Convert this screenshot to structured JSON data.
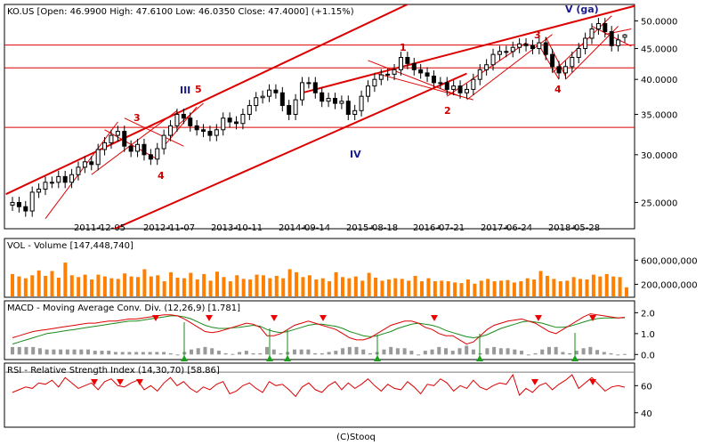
{
  "header": {
    "ticker_line": "KO.US [Open: 46.9900  High: 47.6100  Low: 46.0350  Close: 47.4000] (+1.15%)"
  },
  "footer": {
    "text": "(C)Stooq"
  },
  "colors": {
    "up_candle": "#ffffff",
    "down_candle": "#000000",
    "trendline": "#dd0000",
    "volume_bar": "#ff8000",
    "macd_line": "#dd0000",
    "signal_line": "#1a8a1a",
    "histogram": "#999999",
    "rsi_line": "#dd0000",
    "wave_red": "#cc0000",
    "wave_blue": "#1a1a8c"
  },
  "chart_data": [
    {
      "type": "candlestick",
      "pane": "price",
      "title": "KO.US [Open: 46.9900  High: 47.6100  Low: 46.0350  Close: 47.4000] (+1.15%)",
      "x_tick_labels": [
        "2011-12-05",
        "2012-11-07",
        "2013-10-11",
        "2014-09-14",
        "2015-08-18",
        "2016-07-21",
        "2017-06-24",
        "2018-05-28"
      ],
      "x_range": [
        "2010-11",
        "2019-07"
      ],
      "y_axis_position": "right",
      "y_scale": "log",
      "y_ticks": [
        25,
        30,
        35,
        40,
        45,
        50
      ],
      "y_tick_labels": [
        "25.0000",
        "30.0000",
        "35.0000",
        "40.0000",
        "45.0000",
        "50.0000"
      ],
      "ylim": [
        23,
        52
      ],
      "horizontal_lines": [
        33.3,
        41.8,
        45.6
      ],
      "last_candle": {
        "open": 46.99,
        "high": 47.61,
        "low": 46.035,
        "close": 47.4
      },
      "closes_approx": [
        25.0,
        24.6,
        24.2,
        26.0,
        26.3,
        27.0,
        27.0,
        27.6,
        27.0,
        27.8,
        28.6,
        29.2,
        28.9,
        30.6,
        31.4,
        32.3,
        32.8,
        31.0,
        30.4,
        31.2,
        30.0,
        29.5,
        30.7,
        32.3,
        33.5,
        35.0,
        34.5,
        33.5,
        33.0,
        32.8,
        32.3,
        33.0,
        34.5,
        34.0,
        33.8,
        35.0,
        36.2,
        37.3,
        37.5,
        38.4,
        38.0,
        36.2,
        35.0,
        37.0,
        39.5,
        39.5,
        38.0,
        36.8,
        37.2,
        36.5,
        36.8,
        35.0,
        35.5,
        37.5,
        39.0,
        40.0,
        40.7,
        40.8,
        41.5,
        43.5,
        42.5,
        41.5,
        41.0,
        40.5,
        39.5,
        39.5,
        38.5,
        39.0,
        38.0,
        38.5,
        40.0,
        41.5,
        42.3,
        44.0,
        44.5,
        44.5,
        45.2,
        45.8,
        45.5,
        45.0,
        46.0,
        44.0,
        42.0,
        41.0,
        42.0,
        43.5,
        45.0,
        46.8,
        48.5,
        49.5,
        48.0,
        45.5,
        46.5,
        47.4
      ]
    },
    {
      "type": "bar",
      "pane": "volume",
      "title": "VOL - Volume [147,448,740]",
      "y_ticks": [
        200000000,
        600000000
      ],
      "y_tick_labels": [
        "200,000,000",
        "600,000,000"
      ],
      "ylim": [
        0,
        900000000
      ],
      "last_value": 147448740,
      "values_approx": [
        370,
        330,
        300,
        350,
        430,
        340,
        420,
        310,
        560,
        350,
        320,
        360,
        280,
        360,
        330,
        300,
        290,
        380,
        330,
        320,
        450,
        330,
        350,
        250,
        400,
        310,
        300,
        390,
        280,
        370,
        260,
        410,
        320,
        250,
        350,
        290,
        280,
        360,
        350,
        300,
        340,
        300,
        450,
        400,
        320,
        350,
        280,
        300,
        250,
        400,
        320,
        300,
        330,
        260,
        390,
        310,
        260,
        280,
        300,
        290,
        260,
        340,
        250,
        300,
        250,
        260,
        250,
        230,
        220,
        280,
        210,
        260,
        290,
        250,
        260,
        270,
        230,
        250,
        300,
        280,
        420,
        340,
        290,
        250,
        260,
        320,
        290,
        280,
        360,
        330,
        370,
        330,
        320,
        150
      ]
    },
    {
      "type": "line",
      "pane": "macd",
      "title": "MACD - Moving Average Conv. Div. (12,26,9) [1.781]",
      "y_ticks": [
        0.0,
        1.0,
        2.0
      ],
      "y_tick_labels": [
        "0.0",
        "1.0",
        "2.0"
      ],
      "ylim": [
        -0.2,
        2.4
      ],
      "series": [
        {
          "name": "MACD",
          "values_approx": [
            0.8,
            0.9,
            1.0,
            1.1,
            1.15,
            1.2,
            1.25,
            1.3,
            1.35,
            1.4,
            1.45,
            1.5,
            1.5,
            1.55,
            1.6,
            1.6,
            1.65,
            1.7,
            1.7,
            1.75,
            1.8,
            1.85,
            1.9,
            1.9,
            1.85,
            1.7,
            1.5,
            1.3,
            1.1,
            1.05,
            1.1,
            1.2,
            1.3,
            1.4,
            1.5,
            1.45,
            1.3,
            0.9,
            0.9,
            1.0,
            1.2,
            1.4,
            1.5,
            1.6,
            1.5,
            1.4,
            1.3,
            1.2,
            1.0,
            0.8,
            0.7,
            0.7,
            0.8,
            1.0,
            1.2,
            1.4,
            1.5,
            1.6,
            1.6,
            1.5,
            1.3,
            1.2,
            1.0,
            0.9,
            0.9,
            0.7,
            0.5,
            0.6,
            0.9,
            1.2,
            1.4,
            1.5,
            1.6,
            1.65,
            1.7,
            1.6,
            1.5,
            1.3,
            1.1,
            1.0,
            1.2,
            1.4,
            1.6,
            1.8,
            1.95,
            1.9,
            1.85,
            1.8,
            1.75,
            1.78
          ]
        },
        {
          "name": "Signal",
          "values_approx": [
            0.5,
            0.6,
            0.7,
            0.8,
            0.9,
            1.0,
            1.05,
            1.1,
            1.15,
            1.2,
            1.25,
            1.3,
            1.35,
            1.4,
            1.45,
            1.5,
            1.55,
            1.6,
            1.6,
            1.65,
            1.7,
            1.75,
            1.8,
            1.85,
            1.85,
            1.8,
            1.7,
            1.55,
            1.4,
            1.3,
            1.25,
            1.25,
            1.28,
            1.3,
            1.35,
            1.4,
            1.35,
            1.2,
            1.1,
            1.05,
            1.1,
            1.2,
            1.3,
            1.4,
            1.45,
            1.45,
            1.4,
            1.35,
            1.25,
            1.1,
            1.0,
            0.9,
            0.85,
            0.9,
            1.0,
            1.1,
            1.25,
            1.35,
            1.45,
            1.5,
            1.45,
            1.4,
            1.3,
            1.15,
            1.05,
            0.95,
            0.85,
            0.8,
            0.85,
            0.95,
            1.1,
            1.25,
            1.35,
            1.45,
            1.55,
            1.6,
            1.55,
            1.5,
            1.4,
            1.3,
            1.3,
            1.35,
            1.45,
            1.55,
            1.65,
            1.72,
            1.75,
            1.75,
            1.75,
            1.76
          ]
        }
      ],
      "sell_signal_positions": [
        0.3,
        0.6,
        0.8,
        0.02,
        0.3,
        0.2,
        0.5,
        0.9
      ],
      "buy_signal_positions": [
        0.6,
        0.9,
        0.45,
        0.7,
        0.25,
        0.55
      ]
    },
    {
      "type": "line",
      "pane": "rsi",
      "title": "RSI - Relative Strength Index (14,30,70) [58.86]",
      "y_ticks": [
        40,
        60
      ],
      "y_tick_labels": [
        "40",
        "60"
      ],
      "ylim": [
        30,
        74
      ],
      "reference_lines": [
        70
      ],
      "last_value": 58.86,
      "values_approx": [
        55,
        57,
        59,
        58,
        62,
        61,
        64,
        59,
        66,
        62,
        58,
        60,
        62,
        57,
        63,
        65,
        60,
        59,
        62,
        64,
        57,
        60,
        56,
        62,
        66,
        60,
        63,
        58,
        55,
        59,
        57,
        61,
        63,
        54,
        56,
        60,
        62,
        58,
        55,
        63,
        60,
        61,
        57,
        52,
        59,
        62,
        57,
        55,
        60,
        63,
        57,
        62,
        58,
        61,
        65,
        60,
        56,
        61,
        58,
        57,
        63,
        59,
        54,
        61,
        60,
        65,
        62,
        56,
        60,
        58,
        64,
        59,
        57,
        60,
        62,
        61,
        68,
        53,
        58,
        55,
        60,
        62,
        57,
        61,
        64,
        68,
        58,
        62,
        66,
        61,
        56,
        59,
        60,
        58.86
      ]
    }
  ],
  "annotations": {
    "wave_labels": [
      {
        "text": "1",
        "color": "red"
      },
      {
        "text": "2",
        "color": "red"
      },
      {
        "text": "3",
        "color": "red"
      },
      {
        "text": "4",
        "color": "red"
      },
      {
        "text": "3",
        "color": "red"
      },
      {
        "text": "4",
        "color": "red"
      },
      {
        "text": "5",
        "color": "red"
      },
      {
        "text": "III",
        "color": "blue"
      },
      {
        "text": "IV",
        "color": "blue"
      },
      {
        "text": "V (ga)",
        "color": "blue"
      }
    ]
  }
}
